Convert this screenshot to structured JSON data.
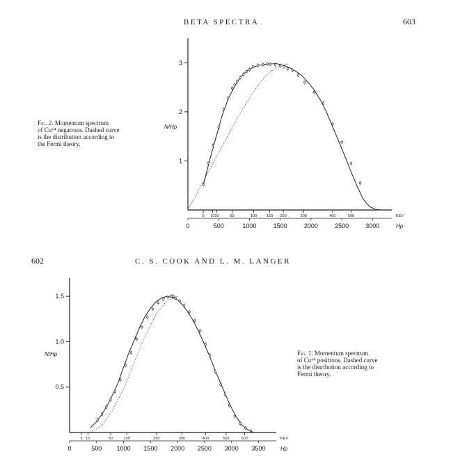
{
  "page_top": {
    "running_head": "BETA SPECTRA",
    "page_number": "603"
  },
  "page_bottom": {
    "running_head": "C. S. COOK AND L. M. LANGER",
    "page_number": "602"
  },
  "fig2": {
    "caption_label": "Fig. 2.",
    "caption_lines": [
      "Momentum spectrum",
      "of Cu⁶⁴ negatrons. Dashed curve",
      "is the distribution according to",
      "the Fermi theory."
    ]
  },
  "fig1": {
    "caption_label": "Fig. 1.",
    "caption_lines": [
      "Momentum spectrum",
      "of Cu⁶⁴ positrons. Dashed curve",
      "is the distribution according to",
      "Fermi theory."
    ]
  },
  "chart_data": [
    {
      "type": "line",
      "ylabel": "N/Hρ",
      "xlabel": "Hρ",
      "x_ticks": [
        "0",
        "500",
        "1000",
        "1500",
        "2000",
        "2500",
        "3000"
      ],
      "y_ticks": [
        "1",
        "2",
        "3"
      ],
      "xlim": [
        0,
        3200
      ],
      "ylim": [
        0,
        3.5
      ],
      "energy_unit": "KEV",
      "energy_ticks": [
        {
          "label": "5",
          "x": 250
        },
        {
          "label": "10",
          "x": 400
        },
        {
          "label": "20",
          "x": 470
        },
        {
          "label": "50",
          "x": 720
        },
        {
          "label": "100",
          "x": 1070
        },
        {
          "label": "150",
          "x": 1330
        },
        {
          "label": "200",
          "x": 1550
        },
        {
          "label": "300",
          "x": 1880
        },
        {
          "label": "400",
          "x": 2350
        },
        {
          "label": "500",
          "x": 2650
        }
      ],
      "series": [
        {
          "style": "solid",
          "x": [
            250,
            350,
            450,
            550,
            650,
            750,
            850,
            950,
            1050,
            1150,
            1250,
            1350,
            1450,
            1550,
            1650,
            1750,
            1850,
            1950,
            2050,
            2150,
            2250,
            2350,
            2450,
            2550,
            2650,
            2750,
            2850,
            2950,
            3050,
            3150
          ],
          "y": [
            0.5,
            1.0,
            1.45,
            1.9,
            2.25,
            2.5,
            2.7,
            2.83,
            2.9,
            2.95,
            2.97,
            2.98,
            2.98,
            2.95,
            2.9,
            2.83,
            2.74,
            2.6,
            2.45,
            2.25,
            2.0,
            1.7,
            1.4,
            1.1,
            0.78,
            0.48,
            0.22,
            0.07,
            0.01,
            0.0
          ]
        },
        {
          "style": "dashed",
          "x": [
            0,
            150,
            300,
            450,
            600,
            750,
            900,
            1050,
            1200,
            1350,
            1500,
            1650
          ],
          "y": [
            0.0,
            0.35,
            0.7,
            1.05,
            1.4,
            1.75,
            2.08,
            2.38,
            2.64,
            2.83,
            2.94,
            2.98
          ]
        }
      ],
      "points": {
        "x": [
          250,
          330,
          410,
          500,
          580,
          650,
          720,
          760,
          800,
          850,
          900,
          950,
          1000,
          1060,
          1140,
          1220,
          1290,
          1340,
          1420,
          1500,
          1560,
          1620,
          1700,
          1790,
          1900,
          2050,
          2200,
          2350,
          2500,
          2650,
          2800
        ],
        "y": [
          0.52,
          0.95,
          1.32,
          1.68,
          2.05,
          2.28,
          2.48,
          2.55,
          2.62,
          2.7,
          2.76,
          2.82,
          2.86,
          2.92,
          2.95,
          2.96,
          2.98,
          2.97,
          2.96,
          2.94,
          2.92,
          2.88,
          2.85,
          2.75,
          2.6,
          2.4,
          2.18,
          1.75,
          1.38,
          0.95,
          0.55
        ]
      }
    },
    {
      "type": "line",
      "ylabel": "N/Hρ",
      "xlabel": "Hρ",
      "x_ticks": [
        "0",
        "500",
        "1000",
        "1500",
        "2000",
        "2500",
        "3000",
        "3500"
      ],
      "y_ticks": [
        "0.5",
        "1.0",
        "1.5"
      ],
      "xlim": [
        0,
        3700
      ],
      "ylim": [
        0,
        1.7
      ],
      "energy_unit": "KEV",
      "energy_ticks": [
        {
          "label": "5",
          "x": 220
        },
        {
          "label": "10",
          "x": 340
        },
        {
          "label": "50",
          "x": 760
        },
        {
          "label": "100",
          "x": 1060
        },
        {
          "label": "200",
          "x": 1610
        },
        {
          "label": "300",
          "x": 2080
        },
        {
          "label": "400",
          "x": 2520
        },
        {
          "label": "500",
          "x": 2900
        },
        {
          "label": "600",
          "x": 3240
        }
      ],
      "series": [
        {
          "style": "solid",
          "x": [
            380,
            500,
            600,
            700,
            800,
            900,
            1000,
            1100,
            1200,
            1300,
            1400,
            1500,
            1600,
            1700,
            1800,
            1900,
            2000,
            2100,
            2200,
            2300,
            2400,
            2500,
            2600,
            2700,
            2800,
            2900,
            3000,
            3100,
            3200,
            3300,
            3400
          ],
          "y": [
            0.05,
            0.12,
            0.2,
            0.3,
            0.42,
            0.55,
            0.72,
            0.88,
            1.02,
            1.16,
            1.28,
            1.37,
            1.44,
            1.48,
            1.5,
            1.49,
            1.46,
            1.4,
            1.32,
            1.22,
            1.1,
            0.97,
            0.83,
            0.68,
            0.54,
            0.4,
            0.27,
            0.16,
            0.08,
            0.03,
            0.0
          ]
        },
        {
          "style": "dashed",
          "x": [
            380,
            600,
            800,
            1000,
            1200,
            1400,
            1600,
            1800,
            2000
          ],
          "y": [
            0.0,
            0.08,
            0.25,
            0.48,
            0.78,
            1.06,
            1.3,
            1.45,
            1.5
          ]
        }
      ],
      "points": {
        "x": [
          520,
          600,
          680,
          760,
          840,
          940,
          1040,
          1140,
          1240,
          1340,
          1440,
          1540,
          1640,
          1740,
          1820,
          1880,
          1920,
          1960,
          2040,
          2120,
          2220,
          2320,
          2420,
          2520,
          2600,
          2700,
          2800,
          2880,
          2960,
          3060,
          3160,
          3260,
          3360
        ],
        "y": [
          0.14,
          0.2,
          0.28,
          0.36,
          0.45,
          0.58,
          0.74,
          0.88,
          1.03,
          1.16,
          1.27,
          1.36,
          1.43,
          1.47,
          1.49,
          1.5,
          1.5,
          1.48,
          1.45,
          1.4,
          1.33,
          1.23,
          1.12,
          0.97,
          0.85,
          0.67,
          0.53,
          0.42,
          0.3,
          0.18,
          0.1,
          0.05,
          0.02
        ]
      }
    }
  ]
}
